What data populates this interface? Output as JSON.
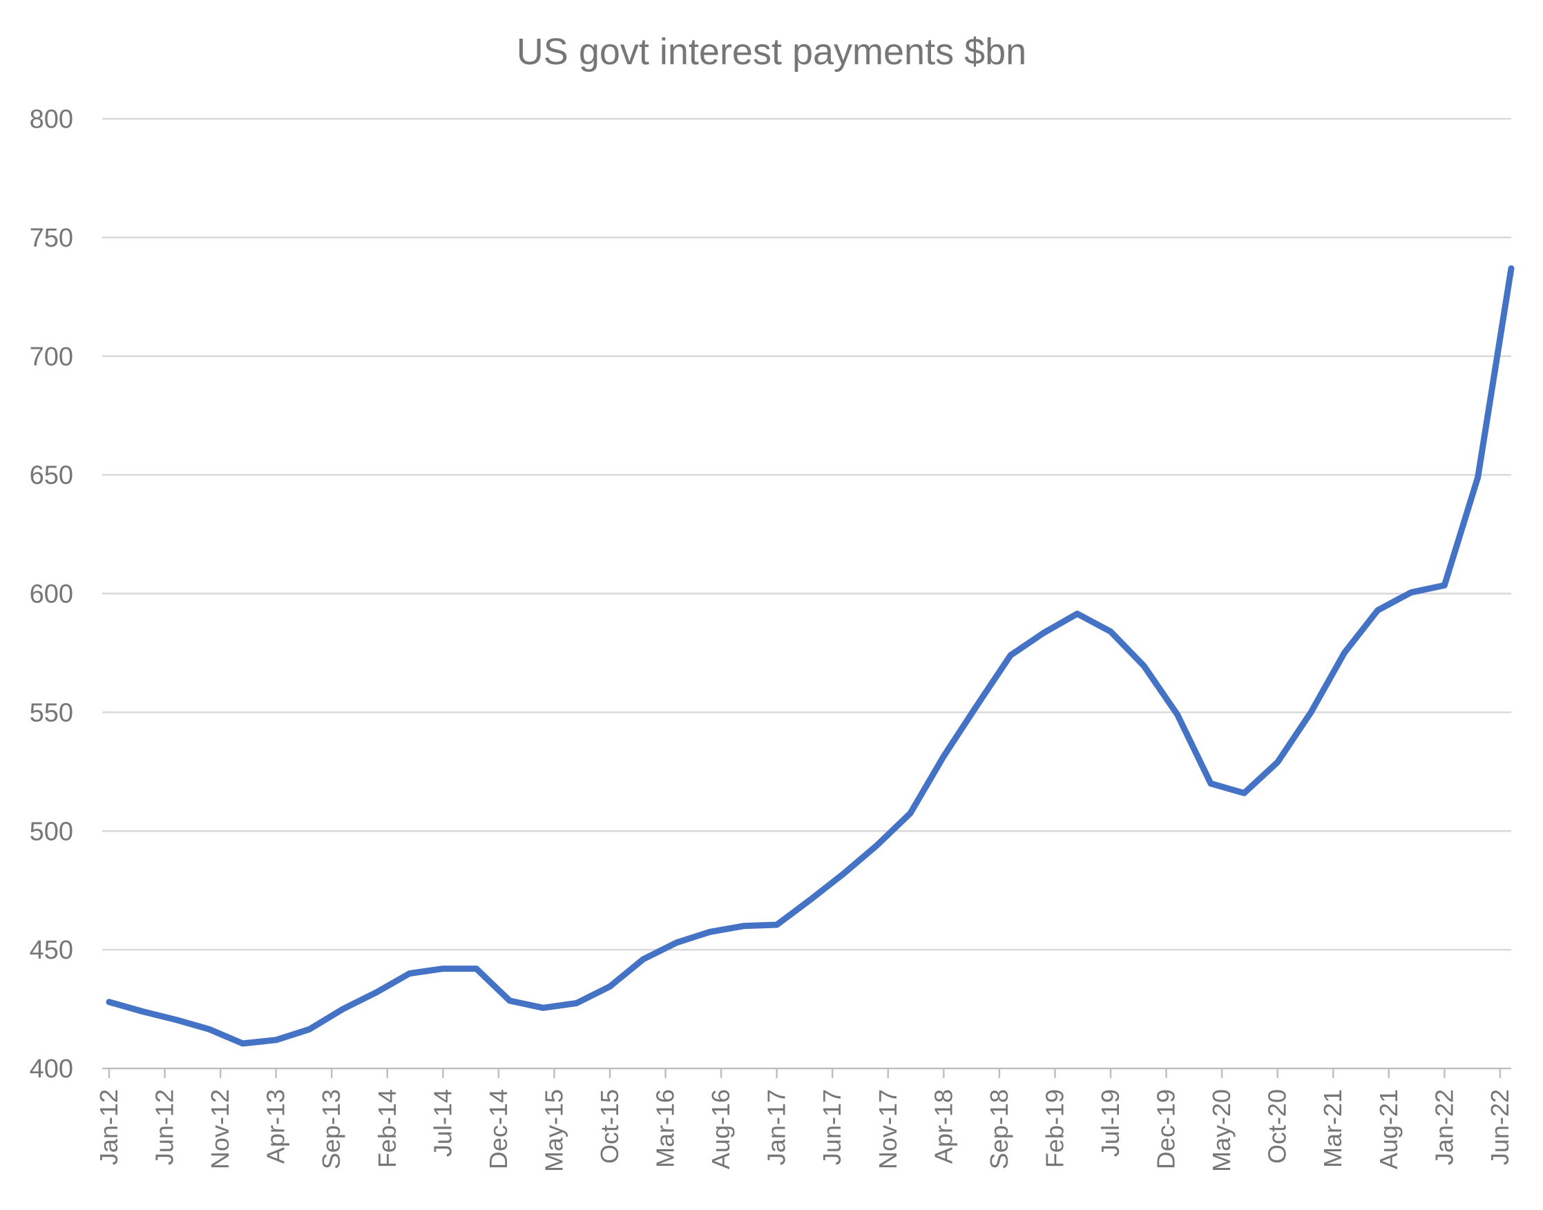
{
  "chart_data": {
    "type": "line",
    "title": "US govt interest payments $bn",
    "xlabel": "",
    "ylabel": "",
    "ylim": [
      400,
      800
    ],
    "yticks": [
      400,
      450,
      500,
      550,
      600,
      650,
      700,
      750,
      800
    ],
    "grid": true,
    "legend": "none",
    "x_tick_labels": [
      "Jan-12",
      "Jun-12",
      "Nov-12",
      "Apr-13",
      "Sep-13",
      "Feb-14",
      "Jul-14",
      "Dec-14",
      "May-15",
      "Oct-15",
      "Mar-16",
      "Aug-16",
      "Jan-17",
      "Jun-17",
      "Nov-17",
      "Apr-18",
      "Sep-18",
      "Feb-19",
      "Jul-19",
      "Dec-19",
      "May-20",
      "Oct-20",
      "Mar-21",
      "Aug-21",
      "Jan-22",
      "Jun-22"
    ],
    "x": [
      "Jan-12",
      "Apr-12",
      "Jul-12",
      "Oct-12",
      "Jan-13",
      "Apr-13",
      "Jul-13",
      "Oct-13",
      "Jan-14",
      "Apr-14",
      "Jul-14",
      "Oct-14",
      "Jan-15",
      "Apr-15",
      "Jul-15",
      "Oct-15",
      "Jan-16",
      "Apr-16",
      "Jul-16",
      "Oct-16",
      "Jan-17",
      "Apr-17",
      "Jul-17",
      "Oct-17",
      "Jan-18",
      "Apr-18",
      "Jul-18",
      "Oct-18",
      "Jan-19",
      "Apr-19",
      "Jul-19",
      "Oct-19",
      "Jan-20",
      "Apr-20",
      "Jul-20",
      "Oct-20",
      "Jan-21",
      "Apr-21",
      "Jul-21",
      "Oct-21",
      "Jan-22",
      "Apr-22",
      "Jul-22"
    ],
    "series": [
      {
        "values": [
          428,
          424,
          420.5,
          416.5,
          410.5,
          412,
          416.5,
          425,
          432,
          440,
          442,
          442,
          428.5,
          425.5,
          427.5,
          434.5,
          446,
          453,
          457.5,
          460,
          460.5,
          471,
          482,
          494,
          507.5,
          531.5,
          553,
          574,
          583.5,
          591.5,
          584,
          569.5,
          549,
          520,
          516,
          529,
          550,
          575,
          593,
          600.5,
          603.5,
          649,
          737
        ],
        "color": "#4472c4"
      }
    ]
  }
}
